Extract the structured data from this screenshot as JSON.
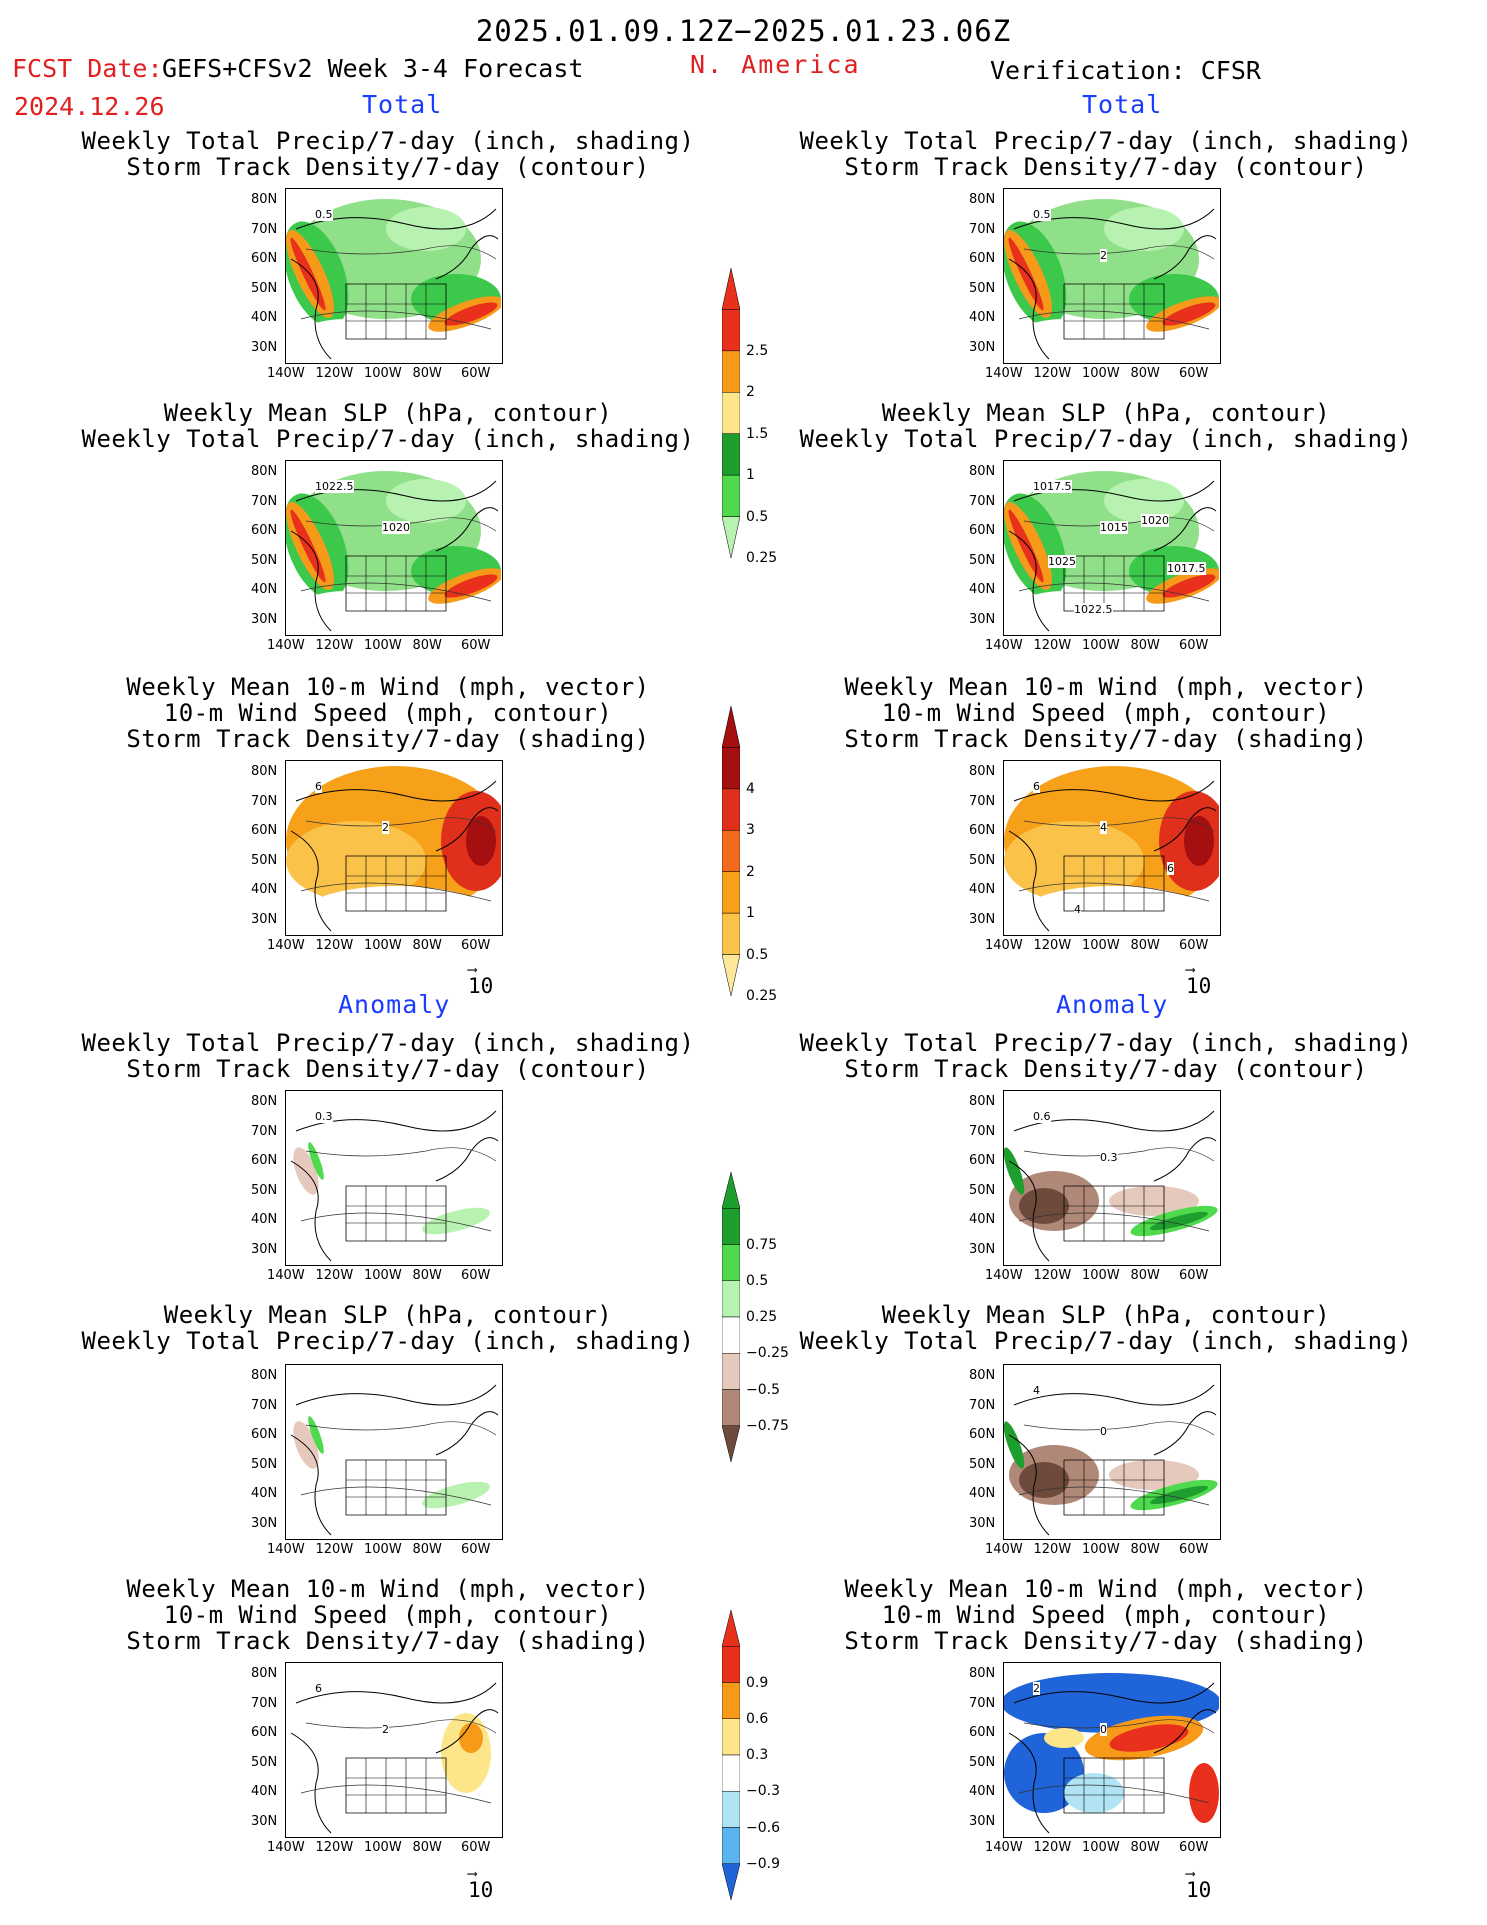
{
  "header": {
    "date_range": "2025.01.09.12Z−2025.01.23.06Z",
    "fcst_label": "FCST Date:",
    "model_label": "GEFS+CFSv2 Week 3-4 Forecast",
    "fcst_date": "2024.12.26",
    "region": "N. America",
    "verification": "Verification: CFSR"
  },
  "sections": {
    "total": "Total",
    "anomaly": "Anomaly"
  },
  "titles": {
    "precip_storm": [
      "Weekly Total Precip/7-day (inch, shading)",
      "Storm Track Density/7-day (contour)"
    ],
    "slp_precip": [
      "Weekly Mean SLP (hPa, contour)",
      "Weekly Total Precip/7-day (inch, shading)"
    ],
    "wind_storm": [
      "Weekly Mean 10-m Wind (mph, vector)",
      "10-m Wind Speed (mph, contour)",
      "Storm Track Density/7-day (shading)"
    ]
  },
  "axes": {
    "lat_ticks": [
      "80N",
      "70N",
      "60N",
      "50N",
      "40N",
      "30N"
    ],
    "lon_ticks": [
      "140W",
      "120W",
      "100W",
      "80W",
      "60W"
    ]
  },
  "vector_ref": "10",
  "colorbars": {
    "precip_total": {
      "labels": [
        "2.5",
        "2",
        "1.5",
        "1",
        "0.5",
        "0.25"
      ],
      "colors": [
        "#e8301c",
        "#f79a1a",
        "#fde68a",
        "#1e9e2e",
        "#4fd94c",
        "#b8f2b0"
      ]
    },
    "storm_total": {
      "labels": [
        "4",
        "3",
        "2",
        "1",
        "0.5",
        "0.25"
      ],
      "colors": [
        "#a50f0f",
        "#e0301c",
        "#f26b1c",
        "#f7a01a",
        "#fbc24a",
        "#fde89a"
      ]
    },
    "precip_anom": {
      "labels": [
        "0.75",
        "0.5",
        "0.25",
        "−0.25",
        "−0.5",
        "−0.75"
      ],
      "colors": [
        "#1e9e2e",
        "#4fd94c",
        "#b8f2b0",
        "#ffffff",
        "#e6c9bd",
        "#b08878",
        "#6e4a3c"
      ]
    },
    "storm_anom": {
      "labels": [
        "0.9",
        "0.6",
        "0.3",
        "−0.3",
        "−0.6",
        "−0.9"
      ],
      "colors": [
        "#e8301c",
        "#f79a1a",
        "#fde68a",
        "#ffffff",
        "#b0e4f4",
        "#5ab4ee",
        "#1f64d8"
      ]
    }
  },
  "contour_labels": {
    "fc_total_precip": [
      "0.5"
    ],
    "fc_total_slp": [
      "1022.5",
      "1020"
    ],
    "fc_total_wind": [
      "6",
      "2"
    ],
    "fc_anom_precip": [
      "0.3"
    ],
    "ver_total_precip": [
      "0.5",
      "2"
    ],
    "ver_total_slp": [
      "1017.5",
      "1015",
      "1017.5",
      "1022.5",
      "1020",
      "1025"
    ],
    "ver_total_wind": [
      "6",
      "4",
      "6",
      "4"
    ],
    "ver_anom_precip": [
      "0.6",
      "0.3"
    ],
    "ver_anom_slp": [
      "4",
      "0"
    ],
    "ver_anom_wind": [
      "2",
      "0"
    ],
    "fc_anom_wind": [
      "6",
      "2"
    ]
  }
}
